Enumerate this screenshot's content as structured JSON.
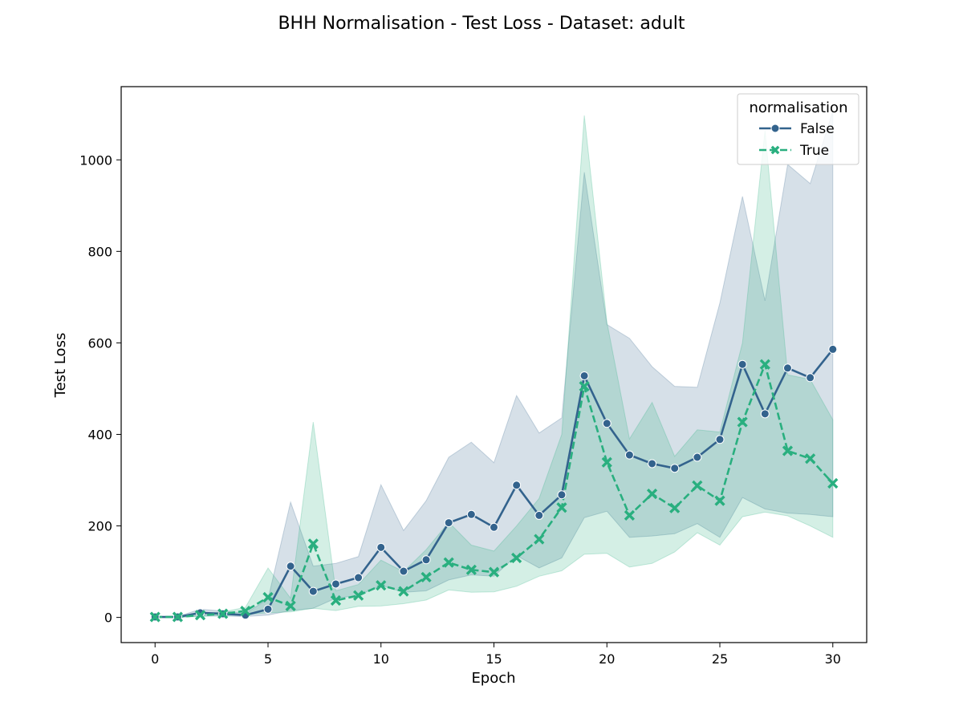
{
  "chart_data": {
    "type": "line",
    "title": "BHH Normalisation - Test Loss - Dataset: adult",
    "xlabel": "Epoch",
    "ylabel": "Test Loss",
    "xlim": [
      -1.5,
      31.5
    ],
    "ylim": [
      -55,
      1160
    ],
    "xticks": [
      0,
      5,
      10,
      15,
      20,
      25,
      30
    ],
    "yticks": [
      0,
      200,
      400,
      600,
      800,
      1000
    ],
    "grid": false,
    "legend": {
      "title": "normalisation",
      "position": "top-right"
    },
    "x": [
      0,
      1,
      2,
      3,
      4,
      5,
      6,
      7,
      8,
      9,
      10,
      11,
      12,
      13,
      14,
      15,
      16,
      17,
      18,
      19,
      20,
      21,
      22,
      23,
      24,
      25,
      26,
      27,
      28,
      29,
      30
    ],
    "series": [
      {
        "name": "False",
        "color": "#33638d",
        "marker": "circle",
        "linestyle": "solid",
        "values": [
          1,
          1,
          10,
          8,
          5,
          18,
          112,
          57,
          73,
          87,
          153,
          101,
          126,
          207,
          225,
          197,
          289,
          223,
          268,
          528,
          424,
          355,
          336,
          326,
          350,
          389,
          553,
          445,
          545,
          524,
          586
        ],
        "lower": [
          0,
          0,
          3,
          3,
          2,
          5,
          15,
          20,
          42,
          48,
          70,
          55,
          58,
          82,
          93,
          90,
          135,
          108,
          130,
          218,
          232,
          175,
          178,
          183,
          205,
          175,
          262,
          237,
          228,
          225,
          220
        ],
        "upper": [
          2,
          2,
          18,
          14,
          9,
          40,
          252,
          112,
          118,
          133,
          290,
          190,
          255,
          350,
          383,
          338,
          485,
          403,
          436,
          973,
          640,
          610,
          548,
          505,
          503,
          687,
          920,
          692,
          990,
          948,
          1107
        ]
      },
      {
        "name": "True",
        "color": "#29af7f",
        "marker": "x",
        "linestyle": "dashed",
        "values": [
          1,
          1,
          5,
          8,
          14,
          44,
          25,
          161,
          37,
          48,
          70,
          57,
          88,
          120,
          104,
          99,
          130,
          171,
          240,
          505,
          339,
          223,
          270,
          239,
          288,
          255,
          427,
          553,
          364,
          347,
          293
        ],
        "lower": [
          0,
          0,
          2,
          4,
          6,
          10,
          12,
          20,
          15,
          24,
          25,
          30,
          38,
          60,
          55,
          56,
          68,
          90,
          102,
          138,
          140,
          110,
          118,
          143,
          185,
          158,
          220,
          230,
          222,
          200,
          175
        ],
        "upper": [
          2,
          2,
          8,
          12,
          22,
          108,
          42,
          427,
          58,
          72,
          125,
          100,
          148,
          208,
          158,
          145,
          200,
          260,
          400,
          1097,
          645,
          390,
          470,
          352,
          410,
          405,
          600,
          1064,
          530,
          520,
          432
        ]
      }
    ]
  }
}
